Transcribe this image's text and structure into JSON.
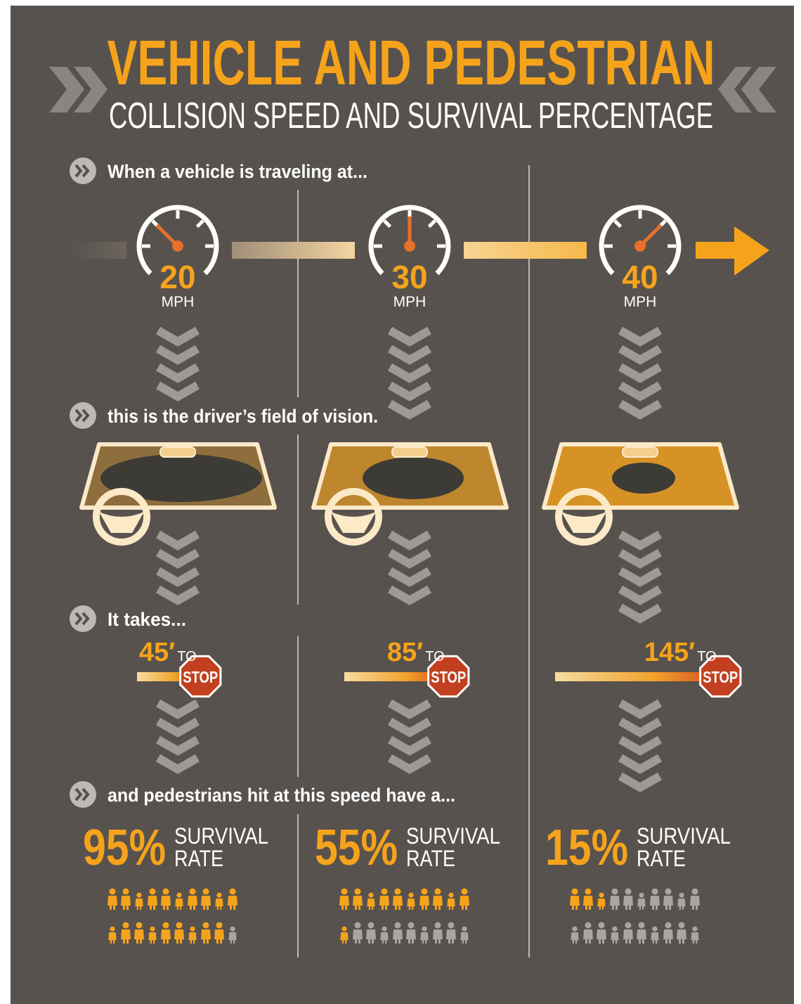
{
  "title": "VEHICLE AND PEDESTRIAN",
  "subtitle": "COLLISION SPEED AND SURVIVAL PERCENTAGE",
  "steps": [
    "When a vehicle is traveling at...",
    "this is the driver’s field of vision.",
    "It takes...",
    "and pedestrians hit at this speed have a..."
  ],
  "columns": [
    {
      "speed": 20,
      "speed_unit": "MPH",
      "stop_distance": {
        "value": 45,
        "label": "45′"
      },
      "to": "TO",
      "sign": "STOP",
      "survival": {
        "value": 95,
        "label": "95%"
      },
      "survival_text": [
        "SURVIVAL",
        "RATE"
      ]
    },
    {
      "speed": 30,
      "speed_unit": "MPH",
      "stop_distance": {
        "value": 85,
        "label": "85′"
      },
      "to": "TO",
      "sign": "STOP",
      "survival": {
        "value": 55,
        "label": "55%"
      },
      "survival_text": [
        "SURVIVAL",
        "RATE"
      ]
    },
    {
      "speed": 40,
      "speed_unit": "MPH",
      "stop_distance": {
        "value": 145,
        "label": "145′"
      },
      "to": "TO",
      "sign": "STOP",
      "survival": {
        "value": 15,
        "label": "15%"
      },
      "survival_text": [
        "SURVIVAL",
        "RATE"
      ]
    }
  ]
}
